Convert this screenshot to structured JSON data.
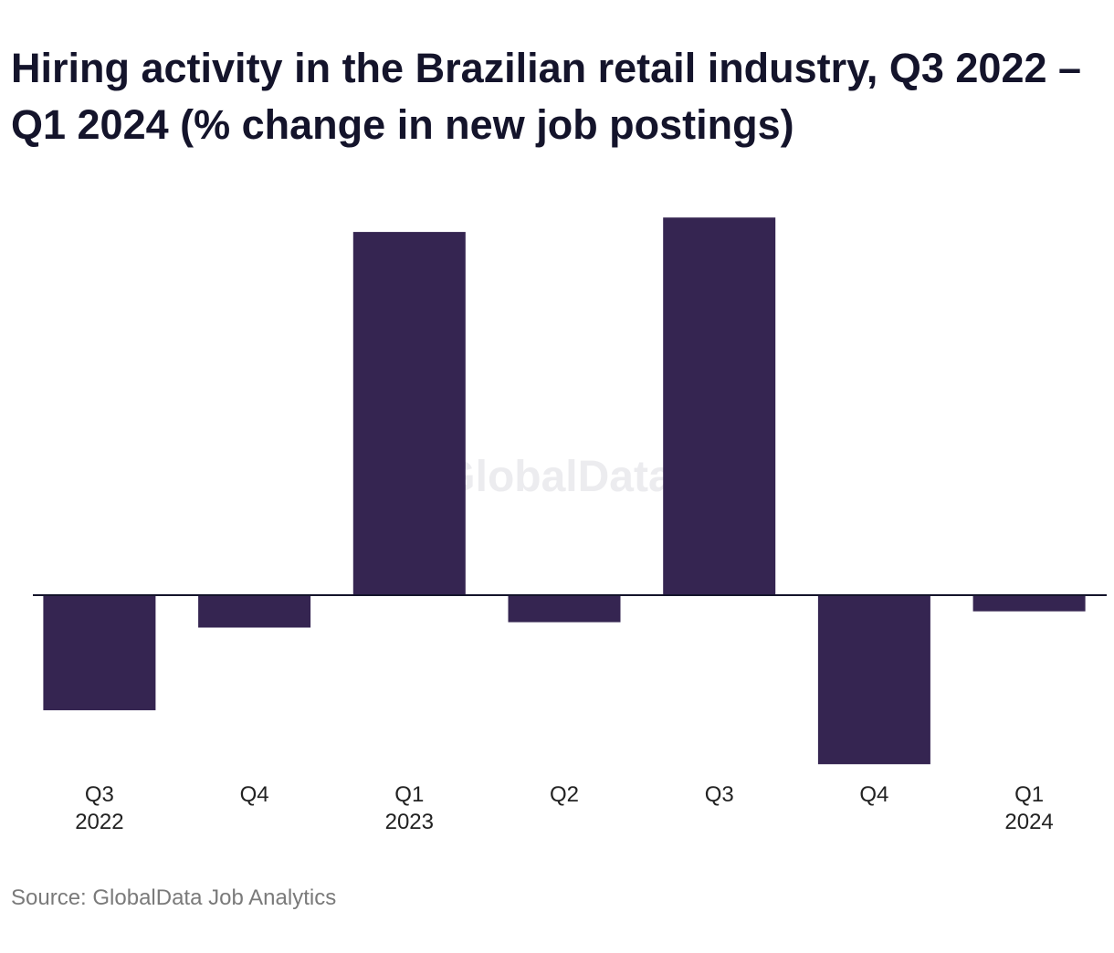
{
  "chart_data": {
    "type": "bar",
    "title": "Hiring activity in the Brazilian retail industry, Q3 2022 – Q1 2024 (% change in new job postings)",
    "categories": [
      {
        "quarter": "Q3",
        "year": "2022"
      },
      {
        "quarter": "Q4",
        "year": ""
      },
      {
        "quarter": "Q1",
        "year": "2023"
      },
      {
        "quarter": "Q2",
        "year": ""
      },
      {
        "quarter": "Q3",
        "year": ""
      },
      {
        "quarter": "Q4",
        "year": ""
      },
      {
        "quarter": "Q1",
        "year": "2024"
      }
    ],
    "values": [
      -32,
      -9,
      101,
      -7.5,
      105,
      -47,
      -4.5
    ],
    "ylim": [
      -55,
      110
    ],
    "grid": false,
    "legend": "none",
    "xlabel": "",
    "ylabel": ""
  },
  "watermark": "GlobalData",
  "source": "Source: GlobalData Job Analytics",
  "colors": {
    "bar": "#352551",
    "axis": "#14142b",
    "text": "#222222",
    "title": "#14142b",
    "source": "#7a7a7a",
    "watermark": "#ececef"
  }
}
